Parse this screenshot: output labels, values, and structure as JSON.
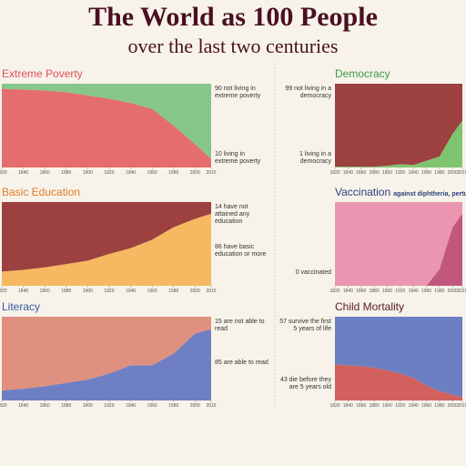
{
  "title": "The World as 100 People",
  "subtitle": "over the last two centuries",
  "chart_data": [
    {
      "type": "area",
      "title": "Extreme Poverty",
      "title_color": "#e0505a",
      "x": [
        1820,
        1840,
        1860,
        1880,
        1900,
        1920,
        1940,
        1960,
        1980,
        2000,
        2015
      ],
      "xlim": [
        1820,
        2015
      ],
      "xticks": [
        1820,
        1840,
        1860,
        1880,
        1900,
        1920,
        1940,
        1960,
        1980,
        2000,
        2015
      ],
      "series": [
        {
          "name": "10 living in extreme poverty",
          "color": "#e56d6d",
          "values": [
            94,
            93,
            92,
            90,
            86,
            82,
            77,
            70,
            50,
            28,
            10
          ]
        },
        {
          "name": "90 not living in extreme poverty",
          "color": "#86c68a",
          "values": [
            6,
            7,
            8,
            10,
            14,
            18,
            23,
            30,
            50,
            72,
            90
          ]
        }
      ]
    },
    {
      "type": "area",
      "title": "Basic Education",
      "title_color": "#e07b2a",
      "x": [
        1820,
        1840,
        1860,
        1880,
        1900,
        1920,
        1940,
        1960,
        1980,
        2000,
        2015
      ],
      "xlim": [
        1820,
        2015
      ],
      "xticks": [
        1820,
        1840,
        1860,
        1880,
        1900,
        1920,
        1940,
        1960,
        1980,
        2000,
        2015
      ],
      "series": [
        {
          "name": "86 have basic education or more",
          "color": "#f6b861",
          "values": [
            17,
            19,
            22,
            26,
            30,
            38,
            45,
            55,
            70,
            80,
            86
          ]
        },
        {
          "name": "14 have not attained any education",
          "color": "#9c4040",
          "values": [
            83,
            81,
            78,
            74,
            70,
            62,
            55,
            45,
            30,
            20,
            14
          ]
        }
      ]
    },
    {
      "type": "area",
      "title": "Literacy",
      "title_color": "#3b58a8",
      "x": [
        1820,
        1840,
        1860,
        1880,
        1900,
        1920,
        1940,
        1960,
        1980,
        2000,
        2015
      ],
      "xlim": [
        1820,
        2015
      ],
      "xticks": [
        1820,
        1840,
        1860,
        1880,
        1900,
        1920,
        1940,
        1960,
        1980,
        2000,
        2015
      ],
      "series": [
        {
          "name": "85 are able to read",
          "color": "#6f7fc4",
          "values": [
            12,
            14,
            17,
            21,
            25,
            32,
            42,
            42,
            56,
            80,
            85
          ]
        },
        {
          "name": "15 are not able to read",
          "color": "#e0907f",
          "values": [
            88,
            86,
            83,
            79,
            75,
            68,
            58,
            58,
            44,
            20,
            15
          ]
        }
      ]
    },
    {
      "type": "area",
      "title": "Democracy",
      "title_color": "#3e9a4a",
      "x": [
        1820,
        1840,
        1860,
        1880,
        1900,
        1920,
        1940,
        1960,
        1980,
        2000,
        2015
      ],
      "xlim": [
        1820,
        2015
      ],
      "xticks": [
        1820,
        1840,
        1860,
        1880,
        1900,
        1920,
        1940,
        1960,
        1980,
        2000,
        2015
      ],
      "series": [
        {
          "name": "1 living in a democracy",
          "color": "#7fc46f",
          "values": [
            1,
            1,
            1,
            1,
            2,
            4,
            3,
            8,
            13,
            40,
            56
          ]
        },
        {
          "name": "99 not living in a democracy",
          "color": "#9c4040",
          "values": [
            99,
            99,
            99,
            99,
            98,
            96,
            97,
            92,
            87,
            60,
            44
          ]
        }
      ]
    },
    {
      "type": "area",
      "title": "Vaccination",
      "subtitle": "against diphtheria, pertussis, tetanus",
      "title_color": "#2b3f7a",
      "x": [
        1820,
        1840,
        1860,
        1880,
        1900,
        1920,
        1940,
        1960,
        1980,
        2000,
        2015
      ],
      "xlim": [
        1820,
        2015
      ],
      "xticks": [
        1820,
        1840,
        1860,
        1880,
        1900,
        1920,
        1940,
        1960,
        1980,
        2000,
        2015
      ],
      "series": [
        {
          "name": "0 vaccinated",
          "color": "#c2577e",
          "values": [
            0,
            0,
            0,
            0,
            0,
            0,
            0,
            0,
            20,
            70,
            86
          ]
        },
        {
          "color": "#eb96b0",
          "values": [
            100,
            100,
            100,
            100,
            100,
            100,
            100,
            100,
            80,
            30,
            14
          ]
        }
      ]
    },
    {
      "type": "area",
      "title": "Child Mortality",
      "title_color": "#5a1a2a",
      "x": [
        1820,
        1840,
        1860,
        1880,
        1900,
        1920,
        1940,
        1960,
        1980,
        2000,
        2015
      ],
      "xlim": [
        1820,
        2015
      ],
      "xticks": [
        1820,
        1840,
        1860,
        1880,
        1900,
        1920,
        1940,
        1960,
        1980,
        2000,
        2015
      ],
      "series": [
        {
          "name": "43 die before they are 5 years old",
          "color": "#d2615e",
          "values": [
            43,
            42,
            41,
            39,
            36,
            32,
            27,
            18,
            11,
            7,
            4
          ]
        },
        {
          "name": "57 survive the first 5 years of life",
          "color": "#6c7fc2",
          "values": [
            57,
            58,
            59,
            61,
            64,
            68,
            73,
            82,
            89,
            93,
            96
          ]
        }
      ]
    }
  ]
}
